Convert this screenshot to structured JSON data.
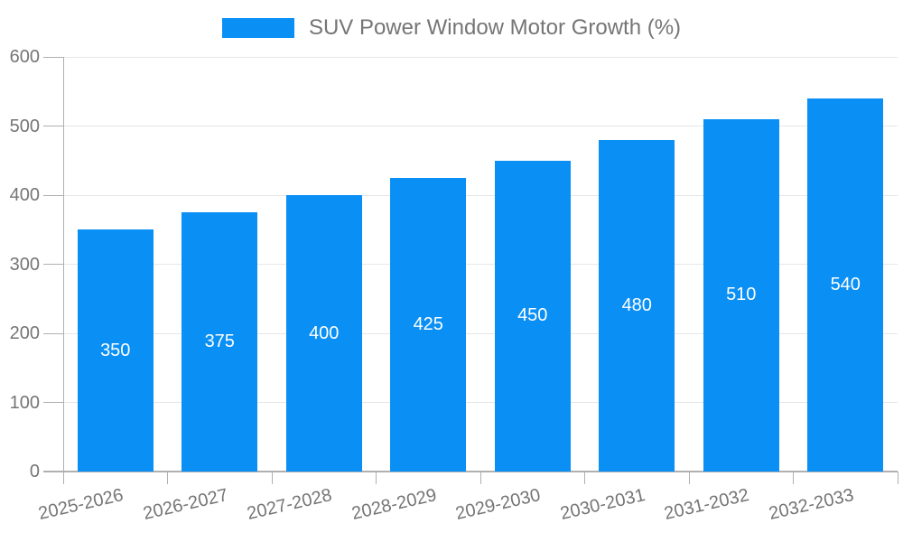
{
  "legend": {
    "label": "SUV Power Window Motor Growth (%)"
  },
  "colors": {
    "bar": "#0a8ff5",
    "grid": "#e6e6e6",
    "axis": "#b0b0b0",
    "tick_label": "#757575",
    "legend_label": "#757575",
    "value_label": "#ffffff",
    "background": "#ffffff"
  },
  "chart_data": {
    "type": "bar",
    "title": "SUV Power Window Motor Growth (%)",
    "categories": [
      "2025-2026",
      "2026-2027",
      "2027-2028",
      "2028-2029",
      "2029-2030",
      "2030-2031",
      "2031-2032",
      "2032-2033"
    ],
    "values": [
      350,
      375,
      400,
      425,
      450,
      480,
      510,
      540
    ],
    "xlabel": "",
    "ylabel": "",
    "ylim": [
      0,
      600
    ],
    "y_ticks": [
      0,
      100,
      200,
      300,
      400,
      500,
      600
    ],
    "grid": true,
    "legend_position": "top-center",
    "bar_labels": "inside-center",
    "x_label_rotation_deg": -13
  }
}
